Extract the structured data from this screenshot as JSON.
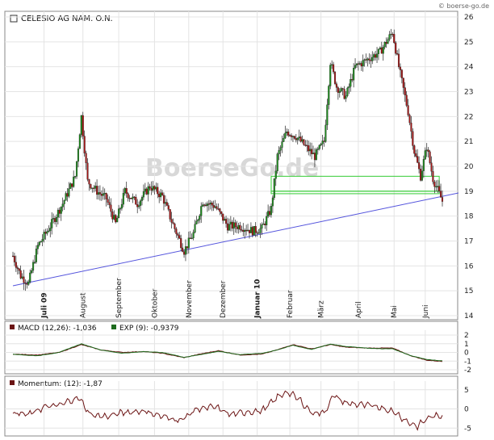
{
  "watermark": "© boerse-go.de",
  "logo_text": "BoerseGo.de",
  "chart_data": [
    {
      "type": "candlestick",
      "title": "CELESIO AG NAM. O.N.",
      "ylim": [
        14,
        26
      ],
      "yticks": [
        14,
        15,
        16,
        17,
        18,
        19,
        20,
        21,
        22,
        23,
        24,
        25,
        26
      ],
      "month_labels": [
        "Juli 09",
        "August",
        "September",
        "Oktober",
        "November",
        "Dezember",
        "Januar 10",
        "Februar",
        "März",
        "April",
        "Mai",
        "Juni"
      ],
      "price_anchors": [
        [
          0,
          16.4
        ],
        [
          5,
          15.6
        ],
        [
          10,
          15.3
        ],
        [
          16,
          16.8
        ],
        [
          24,
          17.6
        ],
        [
          32,
          18.5
        ],
        [
          40,
          19.6
        ],
        [
          44,
          22
        ],
        [
          48,
          19.4
        ],
        [
          54,
          19.0
        ],
        [
          60,
          18.7
        ],
        [
          66,
          17.7
        ],
        [
          72,
          19.0
        ],
        [
          80,
          18.5
        ],
        [
          88,
          19.2
        ],
        [
          96,
          18.8
        ],
        [
          102,
          17.8
        ],
        [
          110,
          16.6
        ],
        [
          116,
          17.3
        ],
        [
          122,
          18.6
        ],
        [
          130,
          18.4
        ],
        [
          138,
          17.6
        ],
        [
          146,
          17.6
        ],
        [
          154,
          17.4
        ],
        [
          160,
          17.5
        ],
        [
          166,
          18.3
        ],
        [
          170,
          20.4
        ],
        [
          176,
          21.4
        ],
        [
          182,
          21.2
        ],
        [
          188,
          20.8
        ],
        [
          194,
          20.4
        ],
        [
          200,
          21.0
        ],
        [
          204,
          24.2
        ],
        [
          208,
          23.2
        ],
        [
          214,
          22.8
        ],
        [
          220,
          24.0
        ],
        [
          228,
          24.3
        ],
        [
          236,
          24.6
        ],
        [
          244,
          25.4
        ],
        [
          248,
          24.0
        ],
        [
          254,
          22.2
        ],
        [
          258,
          20.6
        ],
        [
          262,
          19.6
        ],
        [
          266,
          20.8
        ],
        [
          270,
          19.5
        ],
        [
          276,
          18.6
        ]
      ],
      "trendline": {
        "from": [
          0,
          15.2
        ],
        "to": [
          276,
          18.8
        ]
      },
      "zones": [
        [
          19.0,
          19.6
        ],
        [
          18.9,
          19.0
        ]
      ]
    },
    {
      "type": "line",
      "title": "MACD (12,26): -1,036",
      "title2": "EXP (9): -0,9379",
      "ylim": [
        -2,
        2
      ],
      "yticks": [
        2,
        1,
        0,
        -1,
        -2
      ],
      "series": [
        {
          "name": "MACD (12,26)",
          "color": "#6b1414"
        },
        {
          "name": "EXP (9)",
          "color": "#1e6b1e"
        }
      ],
      "anchors": [
        [
          0,
          -0.2
        ],
        [
          16,
          -0.3
        ],
        [
          30,
          0.0
        ],
        [
          44,
          0.9
        ],
        [
          56,
          0.3
        ],
        [
          70,
          0.0
        ],
        [
          84,
          0.1
        ],
        [
          96,
          -0.1
        ],
        [
          110,
          -0.6
        ],
        [
          120,
          -0.2
        ],
        [
          132,
          0.2
        ],
        [
          146,
          -0.3
        ],
        [
          160,
          -0.2
        ],
        [
          170,
          0.3
        ],
        [
          180,
          0.9
        ],
        [
          192,
          0.4
        ],
        [
          204,
          0.9
        ],
        [
          214,
          0.6
        ],
        [
          228,
          0.5
        ],
        [
          244,
          0.5
        ],
        [
          256,
          -0.4
        ],
        [
          266,
          -0.9
        ],
        [
          276,
          -1.04
        ]
      ]
    },
    {
      "type": "line",
      "title": "Momentum: (12): -1,87",
      "ylim": [
        -6,
        6
      ],
      "yticks": [
        5,
        0,
        -5
      ],
      "series": [
        {
          "name": "Momentum: (12)",
          "color": "#6b1414"
        }
      ],
      "anchors": [
        [
          0,
          -1.0
        ],
        [
          10,
          -1.5
        ],
        [
          20,
          0.5
        ],
        [
          30,
          1.0
        ],
        [
          42,
          3.0
        ],
        [
          50,
          -1.5
        ],
        [
          60,
          -2.0
        ],
        [
          70,
          -1.0
        ],
        [
          84,
          -0.5
        ],
        [
          96,
          -2.0
        ],
        [
          108,
          -3.0
        ],
        [
          118,
          0.0
        ],
        [
          130,
          0.5
        ],
        [
          140,
          -1.5
        ],
        [
          150,
          -0.8
        ],
        [
          160,
          -0.5
        ],
        [
          170,
          3.0
        ],
        [
          176,
          4.5
        ],
        [
          184,
          2.5
        ],
        [
          192,
          -1.0
        ],
        [
          200,
          -1.0
        ],
        [
          206,
          3.5
        ],
        [
          214,
          1.5
        ],
        [
          226,
          1.0
        ],
        [
          236,
          0.5
        ],
        [
          246,
          -1.0
        ],
        [
          254,
          -3.5
        ],
        [
          260,
          -4.5
        ],
        [
          268,
          -2.0
        ],
        [
          276,
          -1.87
        ]
      ]
    }
  ]
}
